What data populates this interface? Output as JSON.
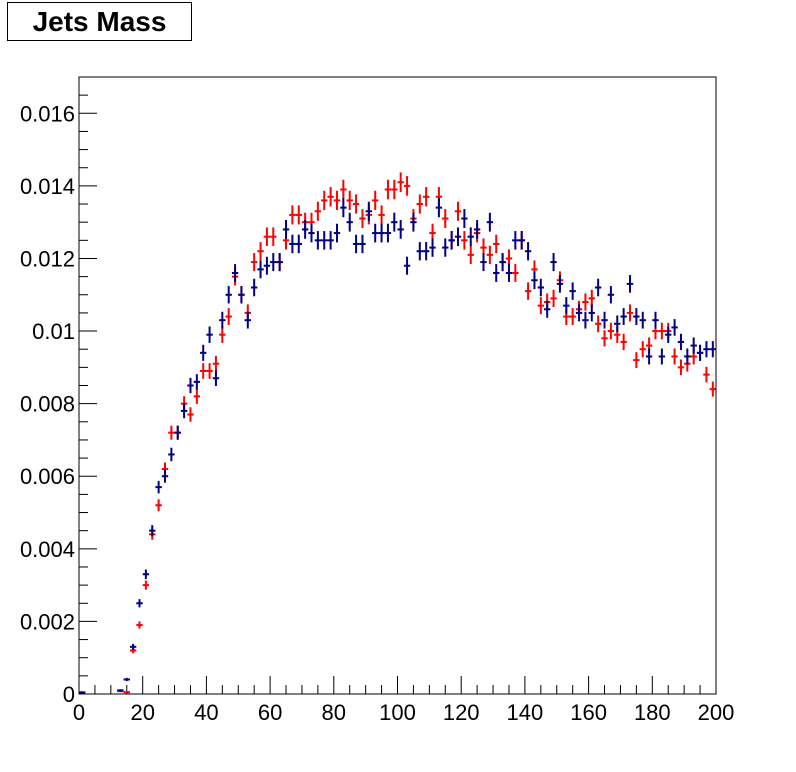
{
  "chart_data": {
    "type": "scatter",
    "title": "Jets Mass",
    "xlabel": "",
    "ylabel": "",
    "xlim": [
      0,
      200
    ],
    "ylim": [
      0,
      0.017
    ],
    "x_ticks": [
      0,
      20,
      40,
      60,
      80,
      100,
      120,
      140,
      160,
      180,
      200
    ],
    "x_tick_labels": [
      "0",
      "20",
      "40",
      "60",
      "80",
      "100",
      "120",
      "140",
      "160",
      "180",
      "200"
    ],
    "y_ticks": [
      0,
      0.002,
      0.004,
      0.006,
      0.008,
      0.01,
      0.012,
      0.014,
      0.016
    ],
    "y_tick_labels": [
      "0",
      "0.002",
      "0.004",
      "0.006",
      "0.008",
      "0.01",
      "0.012",
      "0.014",
      "0.016"
    ],
    "grid": false,
    "legend": "none",
    "bin_width": 2,
    "series": [
      {
        "color": "#ff0000",
        "x": [
          1,
          13,
          15,
          17,
          19,
          21,
          23,
          25,
          27,
          29,
          31,
          33,
          35,
          37,
          39,
          41,
          43,
          45,
          47,
          49,
          51,
          53,
          55,
          57,
          59,
          61,
          63,
          65,
          67,
          69,
          71,
          73,
          75,
          77,
          79,
          81,
          83,
          85,
          87,
          89,
          91,
          93,
          95,
          97,
          99,
          101,
          103,
          105,
          107,
          109,
          111,
          113,
          115,
          117,
          119,
          121,
          123,
          125,
          127,
          129,
          131,
          133,
          135,
          137,
          139,
          141,
          143,
          145,
          147,
          149,
          151,
          153,
          155,
          157,
          159,
          161,
          163,
          165,
          167,
          169,
          171,
          173,
          175,
          177,
          179,
          181,
          183,
          185,
          187,
          189,
          191,
          193,
          195,
          197,
          199
        ],
        "y": [
          5e-05,
          8e-05,
          5e-05,
          0.0012,
          0.0019,
          0.003,
          0.0044,
          0.0052,
          0.0062,
          0.0072,
          0.0072,
          0.008,
          0.0077,
          0.0082,
          0.0089,
          0.0089,
          0.0091,
          0.0099,
          0.0104,
          0.0115,
          0.011,
          0.0105,
          0.0119,
          0.0122,
          0.0126,
          0.0126,
          0.0119,
          0.0125,
          0.0132,
          0.0132,
          0.013,
          0.013,
          0.0133,
          0.0136,
          0.0137,
          0.0136,
          0.0139,
          0.0136,
          0.0135,
          0.0131,
          0.0132,
          0.0136,
          0.0132,
          0.0139,
          0.0139,
          0.0141,
          0.014,
          0.0131,
          0.0135,
          0.0137,
          0.0127,
          0.0137,
          0.0131,
          0.0125,
          0.0133,
          0.0125,
          0.0121,
          0.0127,
          0.0123,
          0.0121,
          0.0124,
          0.0119,
          0.012,
          0.0116,
          0.0125,
          0.0111,
          0.0117,
          0.0107,
          0.0108,
          0.0109,
          0.0114,
          0.0104,
          0.0104,
          0.0106,
          0.0108,
          0.0109,
          0.0102,
          0.0098,
          0.01,
          0.0099,
          0.0097,
          0.0105,
          0.0092,
          0.0095,
          0.0096,
          0.01,
          0.01,
          0.01,
          0.0093,
          0.009,
          0.0091,
          0.0093,
          0.0094,
          0.0088,
          0.0084
        ]
      },
      {
        "color": "#000080",
        "x": [
          1,
          13,
          15,
          17,
          19,
          21,
          23,
          25,
          27,
          29,
          31,
          33,
          35,
          37,
          39,
          41,
          43,
          45,
          47,
          49,
          51,
          53,
          55,
          57,
          59,
          61,
          63,
          65,
          67,
          69,
          71,
          73,
          75,
          77,
          79,
          81,
          83,
          85,
          87,
          89,
          91,
          93,
          95,
          97,
          99,
          101,
          103,
          105,
          107,
          109,
          111,
          113,
          115,
          117,
          119,
          121,
          123,
          125,
          127,
          129,
          131,
          133,
          135,
          137,
          139,
          141,
          143,
          145,
          147,
          149,
          151,
          153,
          155,
          157,
          159,
          161,
          163,
          165,
          167,
          169,
          171,
          173,
          175,
          177,
          179,
          181,
          183,
          185,
          187,
          189,
          191,
          193,
          195,
          197,
          199
        ],
        "y": [
          3e-05,
          0.0001,
          0.0004,
          0.0013,
          0.0025,
          0.0033,
          0.0045,
          0.0057,
          0.006,
          0.0066,
          0.0072,
          0.0078,
          0.0085,
          0.0086,
          0.0094,
          0.0099,
          0.0087,
          0.0103,
          0.011,
          0.0116,
          0.011,
          0.0103,
          0.0112,
          0.0117,
          0.0118,
          0.0119,
          0.0119,
          0.0128,
          0.0124,
          0.0124,
          0.0128,
          0.0127,
          0.0125,
          0.0125,
          0.0125,
          0.0127,
          0.0134,
          0.013,
          0.0124,
          0.0124,
          0.0133,
          0.0127,
          0.0127,
          0.0127,
          0.013,
          0.0128,
          0.0118,
          0.013,
          0.0122,
          0.0122,
          0.0123,
          0.0134,
          0.0123,
          0.0125,
          0.0126,
          0.0131,
          0.0126,
          0.0128,
          0.0119,
          0.013,
          0.0116,
          0.0119,
          0.0116,
          0.0125,
          0.0125,
          0.0122,
          0.0114,
          0.0112,
          0.0106,
          0.0119,
          0.0113,
          0.0107,
          0.0111,
          0.0105,
          0.0103,
          0.0105,
          0.0112,
          0.0103,
          0.011,
          0.0102,
          0.0104,
          0.0113,
          0.0104,
          0.0103,
          0.0093,
          0.0103,
          0.0093,
          0.0099,
          0.0101,
          0.0097,
          0.0093,
          0.0096,
          0.0094,
          0.0095,
          0.0095
        ]
      }
    ]
  }
}
